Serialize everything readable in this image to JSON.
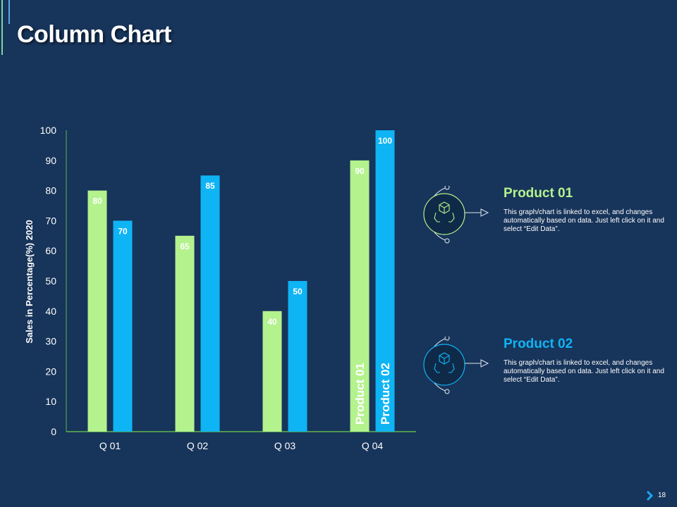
{
  "slide": {
    "title": "Column Chart",
    "page_number": "18"
  },
  "colors": {
    "background": "#17345a",
    "product_01": "#b4f28e",
    "product_02": "#0fb4f5",
    "axis": "#5fb84a"
  },
  "chart_data": {
    "type": "bar",
    "categories": [
      "Q 01",
      "Q 02",
      "Q 03",
      "Q 04"
    ],
    "series": [
      {
        "name": "Product 01",
        "values": [
          80,
          65,
          40,
          90
        ],
        "color": "#b4f28e"
      },
      {
        "name": "Product 02",
        "values": [
          70,
          85,
          50,
          100
        ],
        "color": "#0fb4f5"
      }
    ],
    "ylabel": "Sales in Percentage(%) 2020",
    "xlabel": "",
    "ylim": [
      0,
      100
    ],
    "yticks": [
      0,
      10,
      20,
      30,
      40,
      50,
      60,
      70,
      80,
      90,
      100
    ],
    "grid": false,
    "legend": "right"
  },
  "legend": [
    {
      "title": "Product 01",
      "description": "This graph/chart is linked to excel, and changes automatically based on data. Just left click on it and select “Edit Data”.",
      "color": "#b4f28e",
      "icon": "box-in-hands-icon"
    },
    {
      "title": "Product 02",
      "description": "This graph/chart is linked to excel, and changes automatically based on data. Just left click on it and select “Edit Data”.",
      "color": "#0fb4f5",
      "icon": "box-in-hands-icon"
    }
  ]
}
